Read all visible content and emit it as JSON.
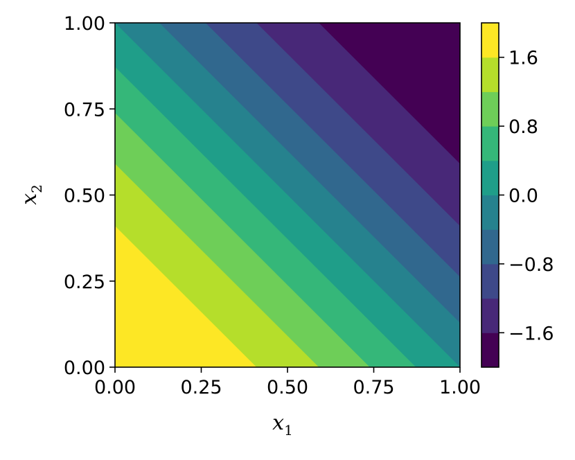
{
  "chart_data": {
    "type": "contourf",
    "title": "",
    "xlabel": {
      "var": "x",
      "sub": "1"
    },
    "ylabel": {
      "var": "x",
      "sub": "2"
    },
    "xlim": [
      0.0,
      1.0
    ],
    "ylim": [
      0.0,
      1.0
    ],
    "x_ticks": [
      0.0,
      0.25,
      0.5,
      0.75,
      1.0
    ],
    "x_tick_labels": [
      "0.00",
      "0.25",
      "0.50",
      "0.75",
      "1.00"
    ],
    "y_ticks": [
      0.0,
      0.25,
      0.5,
      0.75,
      1.0
    ],
    "y_tick_labels": [
      "0.00",
      "0.25",
      "0.50",
      "0.75",
      "1.00"
    ],
    "function": "2*cos(pi*x1/2)*cos(pi*x2/2) - 2*sin(pi*x1/2)*sin(pi*x2/2)",
    "levels": [
      -2.0,
      -1.6,
      -1.2,
      -0.8,
      -0.4,
      0.0,
      0.4,
      0.8,
      1.2,
      1.6,
      2.0
    ],
    "band_colors": [
      "#440154",
      "#482878",
      "#3e4989",
      "#31688e",
      "#26828e",
      "#1f9e89",
      "#35b779",
      "#6ece58",
      "#b5de2b",
      "#fde725"
    ],
    "grid": false,
    "colorbar": {
      "position": "right",
      "ticks": [
        -1.6,
        -0.8,
        0.0,
        0.8,
        1.6
      ],
      "tick_labels": [
        "−1.6",
        "−0.8",
        "0.0",
        "0.8",
        "1.6"
      ]
    }
  }
}
